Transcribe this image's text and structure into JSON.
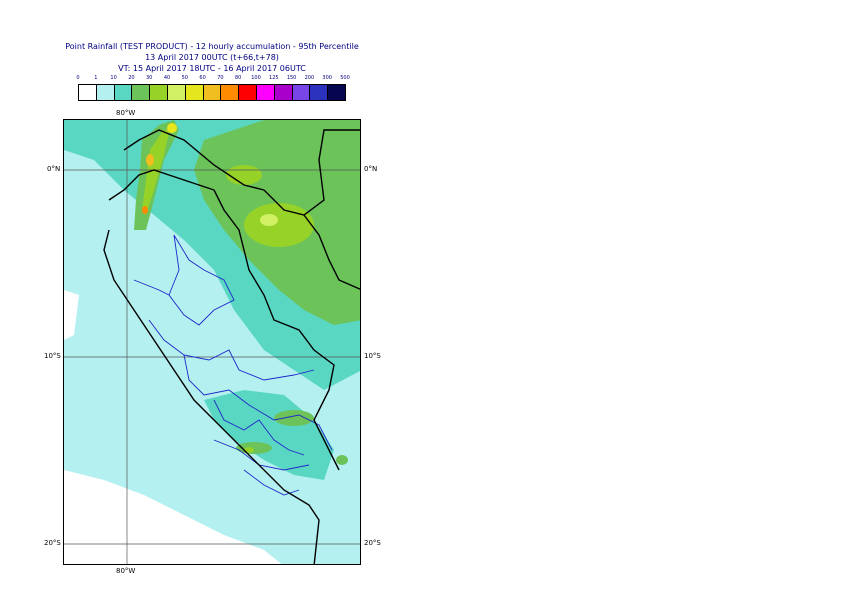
{
  "header": {
    "title_line1": "Point Rainfall (TEST PRODUCT) - 12 hourly accumulation - 95th Percentile",
    "title_line2": "13 April 2017 00UTC (t+66,t+78)",
    "title_line3": "VT: 15 April 2017 18UTC - 16 April 2017 06UTC"
  },
  "colorbar": {
    "ticks": [
      "0",
      "1",
      "10",
      "20",
      "30",
      "40",
      "50",
      "60",
      "70",
      "80",
      "100",
      "125",
      "150",
      "200",
      "300",
      "500"
    ],
    "colors": [
      "#ffffff",
      "#b4f0f0",
      "#5ad7c3",
      "#6bc35a",
      "#96d228",
      "#d2f064",
      "#e6e61e",
      "#f0be1e",
      "#ff8c00",
      "#ff0000",
      "#ff00ff",
      "#aa00cc",
      "#7846e6",
      "#2d32be",
      "#050550"
    ]
  },
  "map": {
    "lon_labels": {
      "top": "80°W",
      "bottom": "80°W"
    },
    "lat_labels": [
      {
        "left": "0°N",
        "right": "0°N"
      },
      {
        "left": "10°S",
        "right": "10°S"
      },
      {
        "left": "20°S",
        "right": "20°S"
      }
    ]
  }
}
